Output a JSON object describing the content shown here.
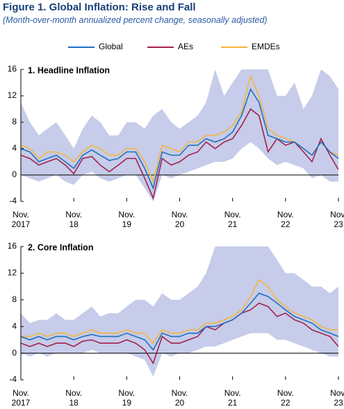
{
  "figure": {
    "title": "Figure 1.  Global Inflation: Rise and Fall",
    "subtitle": "(Month-over-month annualized percent change, seasonally adjusted)"
  },
  "chart_data": [
    {
      "type": "line",
      "title": "1. Headline Inflation",
      "x": [
        2017.83,
        2018.0,
        2018.17,
        2018.33,
        2018.5,
        2018.67,
        2018.83,
        2019.0,
        2019.17,
        2019.33,
        2019.5,
        2019.67,
        2019.83,
        2020.0,
        2020.17,
        2020.33,
        2020.5,
        2020.67,
        2020.83,
        2021.0,
        2021.17,
        2021.33,
        2021.5,
        2021.67,
        2021.83,
        2022.0,
        2022.17,
        2022.33,
        2022.5,
        2022.67,
        2022.83,
        2023.0,
        2023.17,
        2023.33,
        2023.5,
        2023.67,
        2023.83
      ],
      "series": [
        {
          "name": "Global",
          "color": "#1f6fc0",
          "values": [
            4,
            3.5,
            2,
            2.5,
            3,
            2,
            1,
            3,
            3.8,
            3,
            2.2,
            2.5,
            3.5,
            3.5,
            1,
            -2,
            3.5,
            3,
            3,
            4.5,
            4.5,
            5.5,
            5,
            5.5,
            6.5,
            9,
            13,
            11,
            6,
            5.5,
            5,
            5,
            4,
            3,
            5,
            3.5,
            2.5
          ]
        },
        {
          "name": "AEs",
          "color": "#a2214f",
          "values": [
            3,
            2.5,
            1.5,
            2,
            2.5,
            1.5,
            0.2,
            2.5,
            2.8,
            1.5,
            0.5,
            1.5,
            2.5,
            2.5,
            -0.5,
            -3.5,
            2.5,
            1.5,
            2,
            3,
            3.5,
            5,
            4,
            5,
            5.5,
            7.5,
            10,
            9,
            3.5,
            5.5,
            4.5,
            5,
            3.5,
            2,
            5.5,
            3,
            0.8
          ]
        },
        {
          "name": "EMDEs",
          "color": "#f4b53f",
          "values": [
            4.5,
            4,
            2.5,
            3.5,
            3.5,
            3,
            2,
            3.5,
            4.5,
            4,
            3,
            3,
            4,
            4,
            2,
            -1,
            4.5,
            4,
            3.5,
            5,
            5,
            6,
            6,
            6.5,
            7.5,
            9.5,
            15,
            12,
            7,
            6,
            5.5,
            5,
            4,
            3,
            5,
            3.5,
            3
          ]
        }
      ],
      "band": {
        "color": "#c6cce9",
        "upper": [
          11,
          8,
          6,
          7,
          8,
          6,
          4,
          7,
          9,
          8,
          6,
          6,
          8,
          8,
          7,
          9,
          10,
          8,
          7,
          8,
          9,
          11,
          16,
          12,
          14,
          16,
          18,
          18,
          16,
          12,
          12,
          14,
          10,
          12,
          16,
          15,
          13
        ],
        "lower": [
          0,
          -0.5,
          -1,
          -0.5,
          0,
          -1,
          -1.5,
          0,
          0.5,
          -0.5,
          -1,
          -0.5,
          0,
          0,
          -2,
          -4,
          0,
          -0.5,
          0,
          0.5,
          1,
          1.5,
          2,
          2,
          2.5,
          4,
          5,
          4,
          2.5,
          1.5,
          2,
          1.5,
          1,
          -0.5,
          0,
          -1,
          -1
        ]
      },
      "xlim": [
        2017.83,
        2023.83
      ],
      "xticks": [
        {
          "value": 2017.83,
          "label": "Nov.\n2017"
        },
        {
          "value": 2018.83,
          "label": "Nov.\n18"
        },
        {
          "value": 2019.83,
          "label": "Nov.\n19"
        },
        {
          "value": 2020.83,
          "label": "Nov.\n20"
        },
        {
          "value": 2021.83,
          "label": "Nov.\n21"
        },
        {
          "value": 2022.83,
          "label": "Nov.\n22"
        },
        {
          "value": 2023.83,
          "label": "Nov.\n23"
        }
      ],
      "ylim": [
        -4,
        16
      ],
      "yticks": [
        -4,
        0,
        4,
        8,
        12,
        16
      ]
    },
    {
      "type": "line",
      "title": "2. Core Inflation",
      "x": [
        2017.83,
        2018.0,
        2018.17,
        2018.33,
        2018.5,
        2018.67,
        2018.83,
        2019.0,
        2019.17,
        2019.33,
        2019.5,
        2019.67,
        2019.83,
        2020.0,
        2020.17,
        2020.33,
        2020.5,
        2020.67,
        2020.83,
        2021.0,
        2021.17,
        2021.33,
        2021.5,
        2021.67,
        2021.83,
        2022.0,
        2022.17,
        2022.33,
        2022.5,
        2022.67,
        2022.83,
        2023.0,
        2023.17,
        2023.33,
        2023.5,
        2023.67,
        2023.83
      ],
      "series": [
        {
          "name": "Global",
          "color": "#1f6fc0",
          "values": [
            2.5,
            2,
            2.5,
            2,
            2.5,
            2.5,
            2,
            2.5,
            2.8,
            2.5,
            2.5,
            2.5,
            3,
            2.5,
            2,
            0.5,
            3,
            2.5,
            2.5,
            3,
            3,
            4,
            4,
            4.5,
            5,
            6,
            7.5,
            9,
            8.5,
            7.5,
            6.5,
            5.5,
            5,
            4.5,
            3.5,
            3,
            2.5
          ]
        },
        {
          "name": "AEs",
          "color": "#a2214f",
          "values": [
            1.5,
            1,
            1.5,
            1,
            1.5,
            1.5,
            1,
            1.8,
            2,
            1.5,
            1.5,
            1.5,
            2,
            1.5,
            0.5,
            -1.5,
            2.5,
            1.5,
            1.5,
            2,
            2.5,
            4,
            3.5,
            4.5,
            5,
            6,
            6.5,
            7.5,
            7,
            5.5,
            6,
            5,
            4.5,
            3.5,
            3,
            2.5,
            1
          ]
        },
        {
          "name": "EMDEs",
          "color": "#f4b53f",
          "values": [
            2.5,
            2.5,
            3,
            2.5,
            3,
            3,
            2.5,
            3,
            3.5,
            3,
            3,
            3,
            3.5,
            3,
            3,
            1.5,
            3.5,
            3,
            3,
            3.5,
            3.5,
            4.5,
            4.5,
            5,
            5.5,
            6.5,
            8.5,
            11,
            10,
            8,
            7,
            6,
            5.5,
            5,
            4,
            3.5,
            3.5
          ]
        }
      ],
      "band": {
        "color": "#c6cce9",
        "upper": [
          6,
          4.5,
          5,
          5,
          6,
          5,
          5,
          6,
          7,
          5.5,
          6,
          6,
          7,
          8,
          8,
          7,
          9,
          8,
          8,
          9,
          10,
          12,
          16,
          18,
          18,
          18,
          18,
          16,
          16,
          14,
          12,
          12,
          11,
          10,
          10,
          9,
          10
        ],
        "lower": [
          0,
          -0.5,
          0,
          -0.5,
          0,
          0,
          0,
          0,
          0.5,
          0,
          0,
          0,
          0,
          -0.5,
          -1,
          -3.5,
          0,
          -0.5,
          0,
          0,
          0.5,
          1,
          1,
          1.5,
          2,
          2.5,
          3,
          3,
          3,
          2,
          2,
          1.5,
          1,
          0.5,
          0,
          -0.5,
          -0.5
        ]
      },
      "xlim": [
        2017.83,
        2023.83
      ],
      "xticks": [
        {
          "value": 2017.83,
          "label": "Nov.\n2017"
        },
        {
          "value": 2018.83,
          "label": "Nov.\n18"
        },
        {
          "value": 2019.83,
          "label": "Nov.\n19"
        },
        {
          "value": 2020.83,
          "label": "Nov.\n20"
        },
        {
          "value": 2021.83,
          "label": "Nov.\n21"
        },
        {
          "value": 2022.83,
          "label": "Nov.\n22"
        },
        {
          "value": 2023.83,
          "label": "Nov.\n23"
        }
      ],
      "ylim": [
        -4,
        16
      ],
      "yticks": [
        -4,
        0,
        4,
        8,
        12,
        16
      ]
    }
  ]
}
